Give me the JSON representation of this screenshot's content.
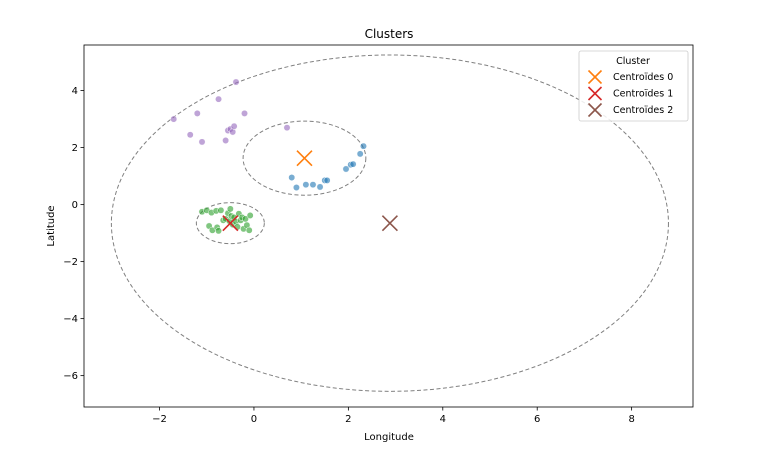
{
  "chart_data": {
    "type": "scatter",
    "title": "Clusters",
    "xlabel": "Longitude",
    "ylabel": "Latitude",
    "xlim": [
      -3.6,
      9.3
    ],
    "ylim": [
      -7.1,
      5.6
    ],
    "xticks": [
      -2,
      0,
      2,
      4,
      6,
      8
    ],
    "yticks": [
      -6,
      -4,
      -2,
      0,
      2,
      4
    ],
    "grid": false,
    "legend": {
      "title": "Cluster",
      "placement": "top-right",
      "entries": [
        {
          "label": "Centroïdes 0",
          "color": "#ff7f0e"
        },
        {
          "label": "Centroïdes 1",
          "color": "#d62728"
        },
        {
          "label": "Centroïdes 2",
          "color": "#8c564b"
        }
      ]
    },
    "series": [
      {
        "color": "#1f77b4",
        "points": [
          [
            0.8,
            0.95
          ],
          [
            0.9,
            0.6
          ],
          [
            1.1,
            0.7
          ],
          [
            1.25,
            0.7
          ],
          [
            1.4,
            0.62
          ],
          [
            1.5,
            0.85
          ],
          [
            1.55,
            0.85
          ],
          [
            1.95,
            1.25
          ],
          [
            2.05,
            1.4
          ],
          [
            2.1,
            1.42
          ],
          [
            2.25,
            1.78
          ],
          [
            2.32,
            2.05
          ]
        ]
      },
      {
        "color": "#2ca02c",
        "points": [
          [
            -1.1,
            -0.25
          ],
          [
            -1.0,
            -0.2
          ],
          [
            -0.95,
            -0.75
          ],
          [
            -0.9,
            -0.28
          ],
          [
            -0.88,
            -0.9
          ],
          [
            -0.8,
            -0.22
          ],
          [
            -0.78,
            -0.8
          ],
          [
            -0.75,
            -0.92
          ],
          [
            -0.7,
            -0.2
          ],
          [
            -0.65,
            -0.55
          ],
          [
            -0.6,
            -0.5
          ],
          [
            -0.55,
            -0.3
          ],
          [
            -0.52,
            -0.58
          ],
          [
            -0.5,
            -0.15
          ],
          [
            -0.48,
            -0.4
          ],
          [
            -0.45,
            -0.7
          ],
          [
            -0.42,
            -0.45
          ],
          [
            -0.38,
            -0.6
          ],
          [
            -0.35,
            -0.78
          ],
          [
            -0.32,
            -0.32
          ],
          [
            -0.28,
            -0.55
          ],
          [
            -0.25,
            -0.45
          ],
          [
            -0.22,
            -0.85
          ],
          [
            -0.18,
            -0.5
          ],
          [
            -0.15,
            -0.72
          ],
          [
            -0.1,
            -0.9
          ],
          [
            -0.08,
            -0.38
          ]
        ]
      },
      {
        "color": "#9467bd",
        "points": [
          [
            -1.7,
            3.0
          ],
          [
            -1.35,
            2.45
          ],
          [
            -1.2,
            3.2
          ],
          [
            -1.1,
            2.2
          ],
          [
            -0.75,
            3.7
          ],
          [
            -0.6,
            2.25
          ],
          [
            -0.55,
            2.6
          ],
          [
            -0.5,
            2.65
          ],
          [
            -0.45,
            2.55
          ],
          [
            -0.42,
            2.75
          ],
          [
            -0.38,
            4.3
          ],
          [
            -0.2,
            3.2
          ],
          [
            0.7,
            2.7
          ]
        ]
      }
    ],
    "centroids": [
      {
        "label": "Centroïdes 0",
        "x": 1.07,
        "y": 1.63,
        "color": "#ff7f0e"
      },
      {
        "label": "Centroïdes 1",
        "x": -0.5,
        "y": -0.65,
        "color": "#d62728"
      },
      {
        "label": "Centroïdes 2",
        "x": 2.88,
        "y": -0.65,
        "color": "#8c564b"
      }
    ],
    "circles": [
      {
        "cx": 1.07,
        "cy": 1.63,
        "r": 1.3
      },
      {
        "cx": -0.5,
        "cy": -0.65,
        "r": 0.72
      },
      {
        "cx": 2.88,
        "cy": -0.65,
        "r": 5.9
      }
    ]
  }
}
